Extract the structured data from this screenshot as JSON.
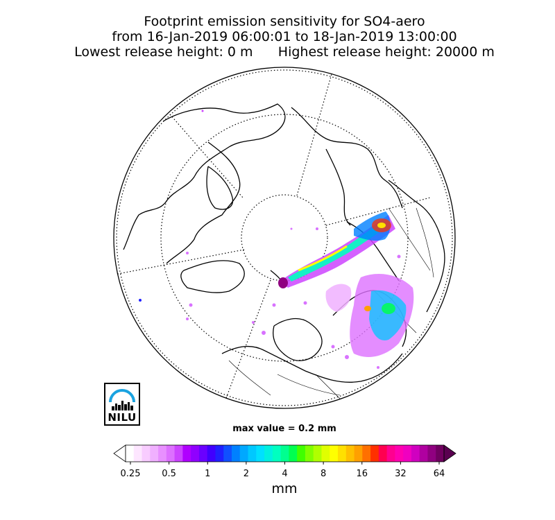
{
  "title": {
    "line1": "Footprint emission sensitivity for SO4-aero",
    "line2": "from 16-Jan-2019 06:00:01 to 18-Jan-2019 13:00:00",
    "line3": "Lowest release height: 0 m      Highest release height: 20000 m"
  },
  "logo": {
    "text": "NILU"
  },
  "max_value_text": "max value = 0.2 mm",
  "colorbar": {
    "ticks": [
      "0.25",
      "0.5",
      "1",
      "2",
      "4",
      "8",
      "16",
      "32",
      "64"
    ],
    "unit": "mm",
    "colors": [
      "#ffffff",
      "#fde6ff",
      "#f8ccff",
      "#f0b0ff",
      "#e890ff",
      "#dd70ff",
      "#cc44ff",
      "#b000ff",
      "#9000ff",
      "#6a00ff",
      "#4000ff",
      "#2020ff",
      "#1050ff",
      "#0080ff",
      "#00a8ff",
      "#00c8ff",
      "#00e0ff",
      "#00f0e0",
      "#00ffc0",
      "#00ff90",
      "#00ff50",
      "#40ff00",
      "#80ff00",
      "#b0ff00",
      "#e0ff00",
      "#ffff00",
      "#ffe000",
      "#ffc000",
      "#ffa000",
      "#ff7000",
      "#ff3000",
      "#ff0050",
      "#ff0090",
      "#ff00b0",
      "#f000c0",
      "#d000c0",
      "#b000a0",
      "#900080",
      "#700060"
    ]
  }
}
